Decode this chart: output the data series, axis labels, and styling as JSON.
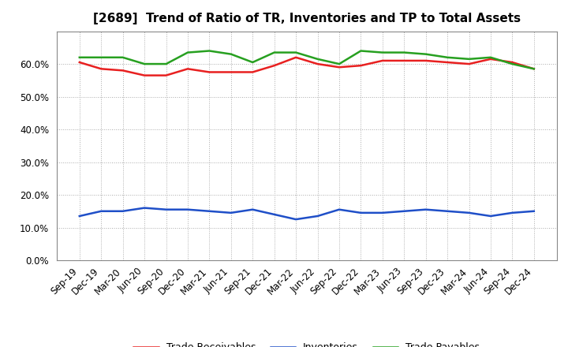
{
  "title": "[2689]  Trend of Ratio of TR, Inventories and TP to Total Assets",
  "x_labels": [
    "Sep-19",
    "Dec-19",
    "Mar-20",
    "Jun-20",
    "Sep-20",
    "Dec-20",
    "Mar-21",
    "Jun-21",
    "Sep-21",
    "Dec-21",
    "Mar-22",
    "Jun-22",
    "Sep-22",
    "Dec-22",
    "Mar-23",
    "Jun-23",
    "Sep-23",
    "Dec-23",
    "Mar-24",
    "Jun-24",
    "Sep-24",
    "Dec-24"
  ],
  "trade_receivables": [
    60.5,
    58.5,
    58.0,
    56.5,
    56.5,
    58.5,
    57.5,
    57.5,
    57.5,
    59.5,
    62.0,
    60.0,
    59.0,
    59.5,
    61.0,
    61.0,
    61.0,
    60.5,
    60.0,
    61.5,
    60.5,
    58.5
  ],
  "inventories": [
    13.5,
    15.0,
    15.0,
    16.0,
    15.5,
    15.5,
    15.0,
    14.5,
    15.5,
    14.0,
    12.5,
    13.5,
    15.5,
    14.5,
    14.5,
    15.0,
    15.5,
    15.0,
    14.5,
    13.5,
    14.5,
    15.0
  ],
  "trade_payables": [
    62.0,
    62.0,
    62.0,
    60.0,
    60.0,
    63.5,
    64.0,
    63.0,
    60.5,
    63.5,
    63.5,
    61.5,
    60.0,
    64.0,
    63.5,
    63.5,
    63.0,
    62.0,
    61.5,
    62.0,
    60.0,
    58.5
  ],
  "ylim": [
    0,
    70
  ],
  "yticks": [
    0,
    10,
    20,
    30,
    40,
    50,
    60
  ],
  "line_color_tr": "#e82020",
  "line_color_inv": "#1f4fc8",
  "line_color_tp": "#27a020",
  "legend_labels": [
    "Trade Receivables",
    "Inventories",
    "Trade Payables"
  ],
  "background_color": "#ffffff",
  "grid_color": "#aaaaaa",
  "title_fontsize": 11,
  "tick_fontsize": 8.5,
  "legend_fontsize": 9
}
